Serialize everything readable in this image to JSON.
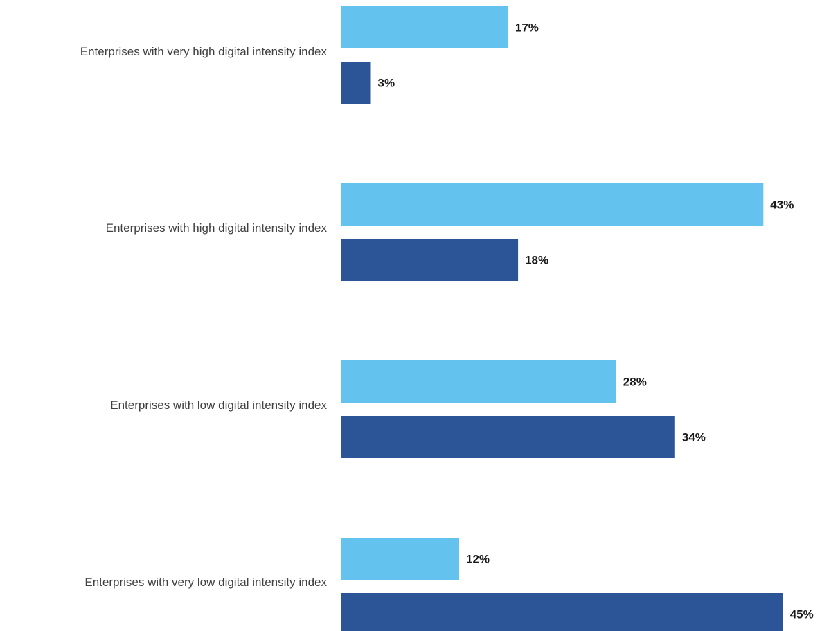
{
  "chart_data": {
    "type": "bar",
    "orientation": "horizontal",
    "categories": [
      "Enterprises with very high digital intensity index",
      "Enterprises with high digital intensity index",
      "Enterprises with low digital intensity index",
      "Enterprises with very low digital intensity index"
    ],
    "series": [
      {
        "color": "#63c3ee",
        "values": [
          17,
          43,
          28,
          12
        ],
        "labels": [
          "17%",
          "43%",
          "28%",
          "12%"
        ]
      },
      {
        "color": "#2b5597",
        "values": [
          3,
          18,
          34,
          45
        ],
        "labels": [
          "3%",
          "18%",
          "34%",
          "45%"
        ]
      }
    ],
    "unit": "%",
    "xlim": [
      0,
      45
    ],
    "grid": false,
    "legend": "none"
  }
}
